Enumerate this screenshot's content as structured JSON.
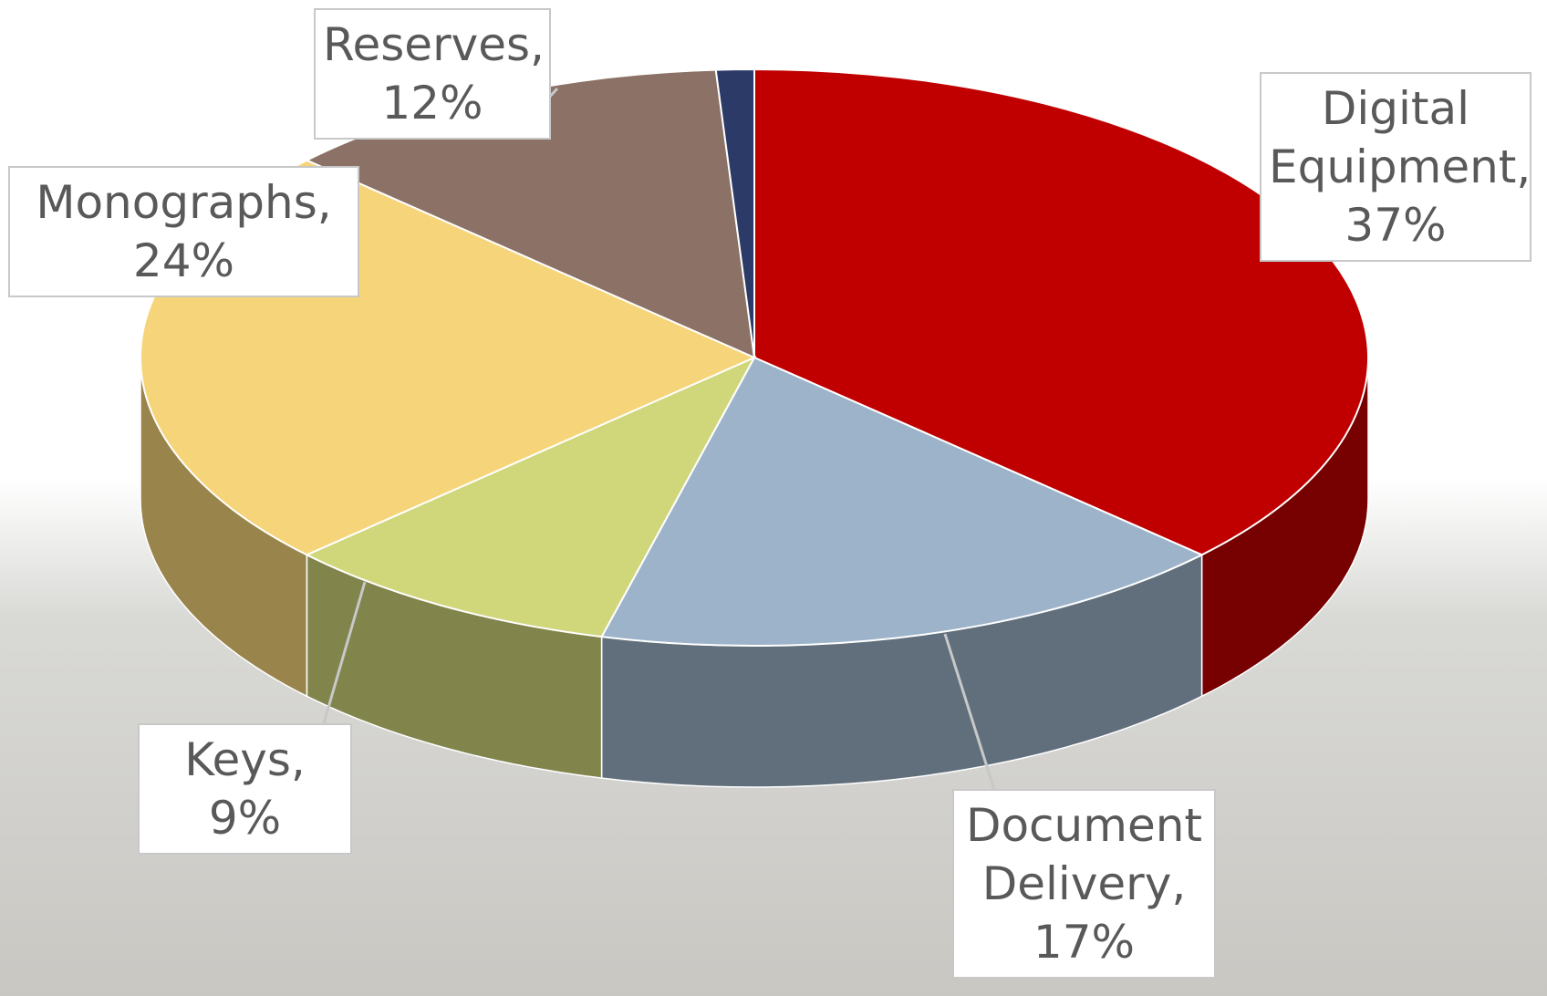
{
  "chart_data": {
    "type": "pie",
    "style": "3d",
    "categories": [
      "Digital Equipment,",
      "Document Delivery,",
      "Keys,",
      "Monographs,",
      "Reserves,",
      null
    ],
    "values": [
      37,
      17,
      9,
      24,
      12,
      1
    ],
    "value_labels": [
      "37%",
      "17%",
      "9%",
      "24%",
      "12%",
      null
    ],
    "colors": [
      "#c00000",
      "#9db3ca",
      "#d0d67a",
      "#f6d57a",
      "#8b7166",
      "#2b3a67"
    ]
  }
}
